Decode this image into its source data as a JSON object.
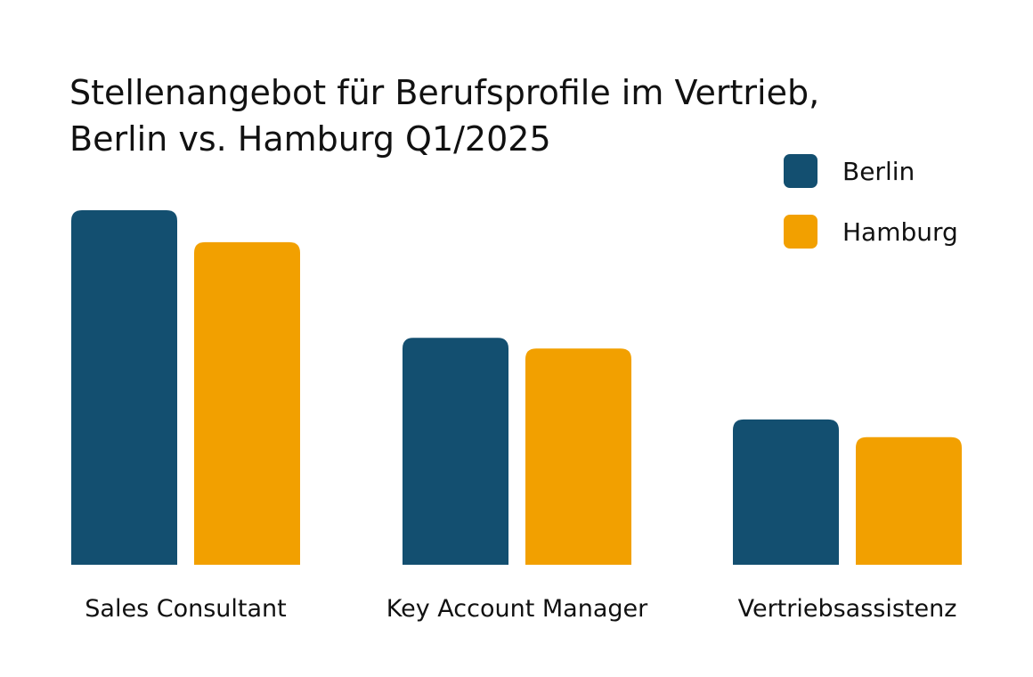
{
  "chart_data": {
    "type": "bar",
    "title_lines": [
      "Stellenangebot für Berufsprofile im Vertrieb,",
      "Berlin vs. Hamburg Q1/2025"
    ],
    "categories": [
      "Sales Consultant",
      "Key Account Manager",
      "Vertriebsassistenz"
    ],
    "series": [
      {
        "name": "Berlin",
        "values": [
          100,
          64,
          41
        ],
        "color": "#134f70"
      },
      {
        "name": "Hamburg",
        "values": [
          91,
          61,
          36
        ],
        "color": "#f2a000"
      }
    ],
    "ylim": [
      0,
      100
    ],
    "grid": false,
    "legend_position": "top-right"
  }
}
